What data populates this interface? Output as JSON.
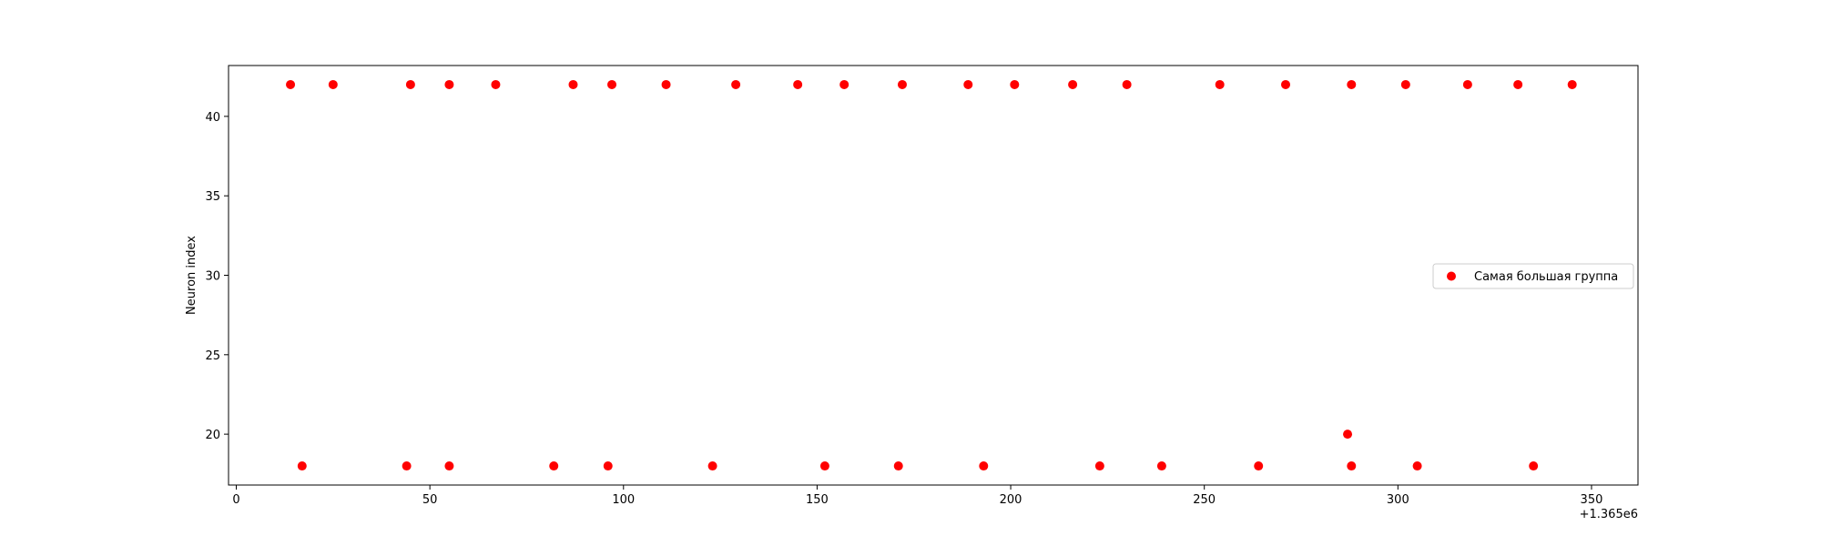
{
  "chart_data": {
    "type": "scatter",
    "title": "",
    "xlabel": "",
    "ylabel": "Neuron index",
    "x_offset_text": "+1.365e6",
    "xlim": [
      -2,
      362
    ],
    "ylim": [
      16.8,
      43.2
    ],
    "xticks": [
      0,
      50,
      100,
      150,
      200,
      250,
      300,
      350
    ],
    "yticks": [
      20,
      25,
      30,
      35,
      40
    ],
    "grid": false,
    "legend_position": "center-right",
    "series": [
      {
        "name": "Самая большая группа",
        "color": "#ff0000",
        "marker": "circle",
        "points": [
          {
            "x": 14,
            "y": 42
          },
          {
            "x": 25,
            "y": 42
          },
          {
            "x": 45,
            "y": 42
          },
          {
            "x": 55,
            "y": 42
          },
          {
            "x": 67,
            "y": 42
          },
          {
            "x": 87,
            "y": 42
          },
          {
            "x": 97,
            "y": 42
          },
          {
            "x": 111,
            "y": 42
          },
          {
            "x": 129,
            "y": 42
          },
          {
            "x": 145,
            "y": 42
          },
          {
            "x": 157,
            "y": 42
          },
          {
            "x": 172,
            "y": 42
          },
          {
            "x": 189,
            "y": 42
          },
          {
            "x": 201,
            "y": 42
          },
          {
            "x": 216,
            "y": 42
          },
          {
            "x": 230,
            "y": 42
          },
          {
            "x": 254,
            "y": 42
          },
          {
            "x": 271,
            "y": 42
          },
          {
            "x": 288,
            "y": 42
          },
          {
            "x": 302,
            "y": 42
          },
          {
            "x": 318,
            "y": 42
          },
          {
            "x": 331,
            "y": 42
          },
          {
            "x": 345,
            "y": 42
          },
          {
            "x": 17,
            "y": 18
          },
          {
            "x": 44,
            "y": 18
          },
          {
            "x": 55,
            "y": 18
          },
          {
            "x": 82,
            "y": 18
          },
          {
            "x": 96,
            "y": 18
          },
          {
            "x": 123,
            "y": 18
          },
          {
            "x": 152,
            "y": 18
          },
          {
            "x": 171,
            "y": 18
          },
          {
            "x": 193,
            "y": 18
          },
          {
            "x": 223,
            "y": 18
          },
          {
            "x": 239,
            "y": 18
          },
          {
            "x": 264,
            "y": 18
          },
          {
            "x": 288,
            "y": 18
          },
          {
            "x": 305,
            "y": 18
          },
          {
            "x": 335,
            "y": 18
          },
          {
            "x": 287,
            "y": 20
          }
        ]
      }
    ]
  }
}
